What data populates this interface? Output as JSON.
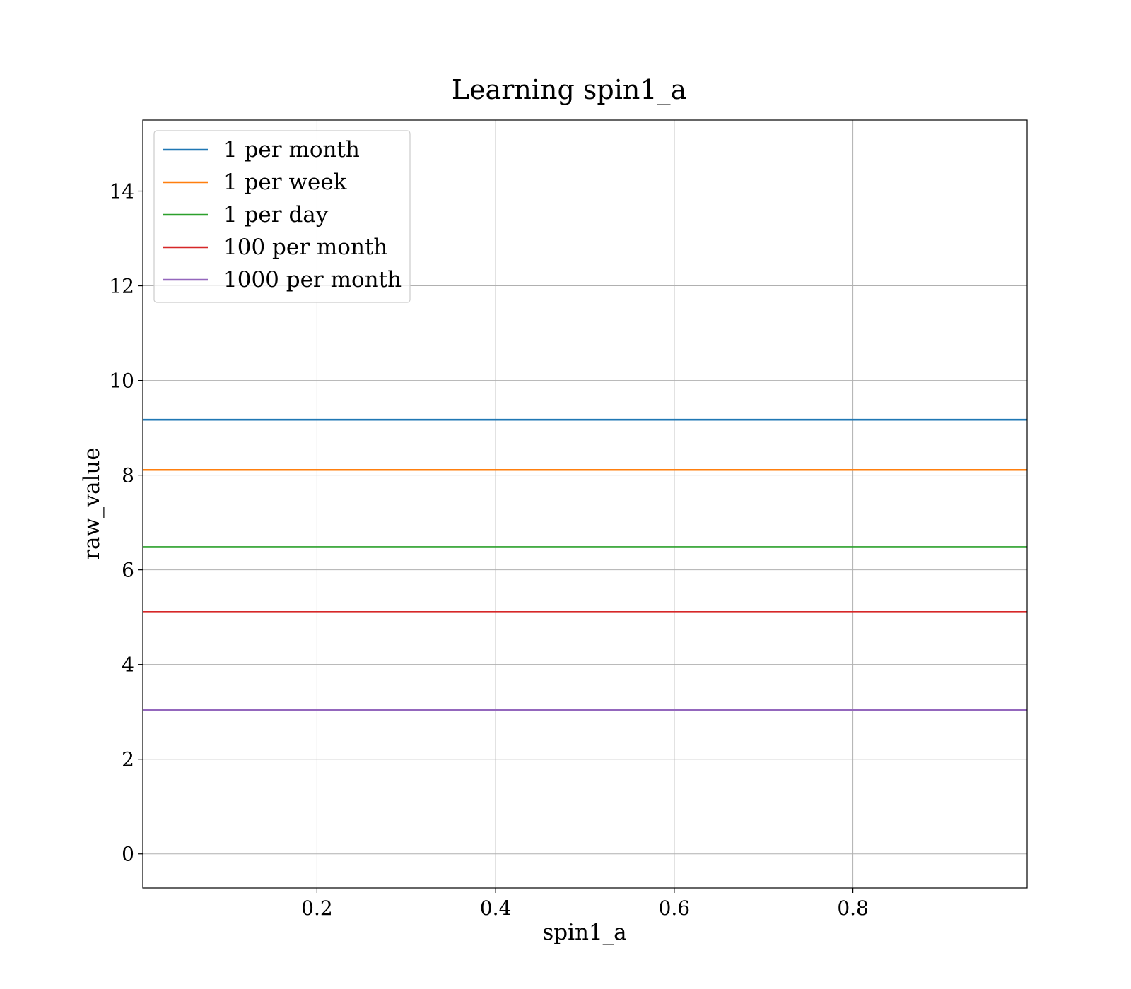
{
  "chart_data": {
    "type": "scatter",
    "title": "Learning spin1_a",
    "xlabel": "spin1_a",
    "ylabel": "raw_value",
    "xlim": [
      0.005,
      0.995
    ],
    "ylim": [
      -0.72,
      15.5
    ],
    "xticks": [
      0.2,
      0.4,
      0.6,
      0.8
    ],
    "xtick_labels": [
      "0.2",
      "0.4",
      "0.6",
      "0.8"
    ],
    "yticks": [
      0,
      2,
      4,
      6,
      8,
      10,
      12,
      14
    ],
    "ytick_labels": [
      "0",
      "2",
      "4",
      "6",
      "8",
      "10",
      "12",
      "14"
    ],
    "grid": true,
    "legend": "top-left",
    "point_color": "#1f77b4",
    "hlines": [
      {
        "name": "1 per month",
        "y": 9.17,
        "color": "#1f77b4"
      },
      {
        "name": "1 per week",
        "y": 8.11,
        "color": "#ff7f0e"
      },
      {
        "name": "1 per day",
        "y": 6.48,
        "color": "#2ca02c"
      },
      {
        "name": "100 per month",
        "y": 5.11,
        "color": "#d62728"
      },
      {
        "name": "1000 per month",
        "y": 3.04,
        "color": "#9467bd"
      }
    ]
  }
}
